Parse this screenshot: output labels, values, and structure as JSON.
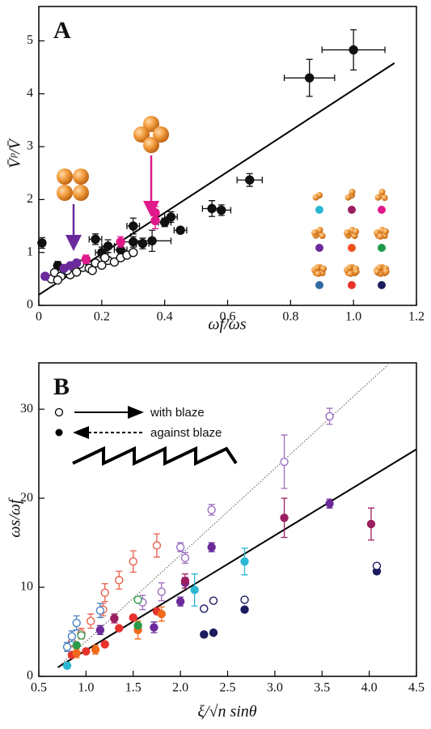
{
  "chart_data": [
    {
      "type": "scatter",
      "panel_label": "A",
      "xlabel": "ωf/ωs",
      "ylabel": "V̄ᵖ/V̄",
      "xlim": [
        0,
        1.2
      ],
      "ylim": [
        0,
        5.65
      ],
      "xticks": [
        0,
        0.2,
        0.4,
        0.6,
        0.8,
        {
          "value": 1,
          "label": "1.0"
        },
        1.2
      ],
      "yticks": [
        0,
        1,
        2,
        3,
        4,
        5
      ],
      "series": [
        {
          "color": "#111111",
          "marker": "filled",
          "x": [
            1.0,
            0.86,
            0.67,
            0.55,
            0.58,
            0.45,
            0.42,
            0.4,
            0.36,
            0.3,
            0.3,
            0.22,
            0.18,
            0.01,
            0.06,
            0.33,
            0.2,
            0.26
          ],
          "values": [
            4.83,
            4.3,
            2.37,
            1.83,
            1.8,
            1.42,
            1.67,
            1.57,
            1.22,
            1.5,
            1.2,
            1.12,
            1.25,
            1.18,
            0.75,
            1.17,
            1.0,
            1.05
          ],
          "xerr": [
            0.1,
            0.08,
            0.04,
            0.03,
            0.03,
            0.02,
            0.02,
            0.02,
            0.06,
            0.02,
            0.03,
            0.02,
            0.02,
            0.01,
            0.01,
            0.02,
            0.02,
            0.02
          ],
          "yerr": [
            0.38,
            0.35,
            0.12,
            0.15,
            0.1,
            0.06,
            0.1,
            0.08,
            0.2,
            0.15,
            0.1,
            0.12,
            0.1,
            0.1,
            0.08,
            0.1,
            0.1,
            0.1
          ]
        },
        {
          "color": "#111111",
          "marker": "open",
          "x": [
            0.04,
            0.05,
            0.07,
            0.08,
            0.1,
            0.12,
            0.14,
            0.16,
            0.18,
            0.2,
            0.22,
            0.24,
            0.26,
            0.28,
            0.3,
            0.06,
            0.09,
            0.13,
            0.17,
            0.21
          ],
          "values": [
            0.5,
            0.62,
            0.55,
            0.68,
            0.58,
            0.63,
            0.72,
            0.7,
            0.8,
            0.76,
            0.85,
            0.82,
            0.9,
            0.95,
            1.0,
            0.48,
            0.66,
            0.78,
            0.66,
            0.9
          ]
        },
        {
          "color": "#6b2a9c",
          "marker": "filled",
          "x": [
            0.02,
            0.08,
            0.1,
            0.12
          ],
          "values": [
            0.55,
            0.7,
            0.75,
            0.8
          ]
        },
        {
          "color": "#e0198a",
          "marker": "filled",
          "x": [
            0.37,
            0.37,
            0.26,
            0.15
          ],
          "values": [
            1.6,
            1.75,
            1.2,
            0.87
          ],
          "yerr": [
            0.15,
            0.12,
            0.1,
            0.08
          ]
        }
      ],
      "lines": [
        {
          "color": "#000000",
          "style": "solid",
          "x": [
            0,
            1.13
          ],
          "values": [
            0.2,
            4.58
          ]
        }
      ]
    },
    {
      "type": "scatter",
      "panel_label": "B",
      "xlabel": "ξ/√n sinθ",
      "ylabel": "ωs/ωf",
      "xlim": [
        0.5,
        4.5
      ],
      "ylim": [
        0,
        35.2
      ],
      "xticks": [
        0.5,
        {
          "value": 1,
          "label": "1.0"
        },
        1.5,
        {
          "value": 2,
          "label": "2.0"
        },
        2.5,
        {
          "value": 3,
          "label": "3.0"
        },
        3.5,
        {
          "value": 4,
          "label": "4.0"
        },
        4.5
      ],
      "yticks": [
        0,
        10,
        20,
        30
      ],
      "legend_labels": [
        "with blaze",
        "against blaze"
      ],
      "series": [
        {
          "color": "#9b6fc0",
          "marker": "open",
          "x": [
            3.58,
            3.1,
            2.33,
            2.0,
            2.05,
            1.8,
            1.6
          ],
          "values": [
            29.2,
            24.1,
            18.7,
            14.5,
            13.3,
            9.5,
            8.3
          ],
          "yerr": [
            0.9,
            3.0,
            0.6,
            0.5,
            0.6,
            1.0,
            0.8
          ]
        },
        {
          "color": "#6a2a9a",
          "marker": "filled",
          "x": [
            3.58,
            2.33,
            2.05,
            2.0,
            1.15,
            1.72
          ],
          "values": [
            19.4,
            14.5,
            10.5,
            8.4,
            5.2,
            5.5
          ],
          "yerr": [
            0.5,
            0.5,
            0.6,
            0.5,
            0.5,
            0.6
          ]
        },
        {
          "color": "#9b1f5e",
          "marker": "filled",
          "x": [
            3.1,
            4.02,
            2.05,
            1.3
          ],
          "values": [
            17.8,
            17.1,
            10.7,
            6.5
          ],
          "yerr": [
            2.2,
            1.8,
            0.8,
            0.5
          ]
        },
        {
          "color": "#1b1b5e",
          "marker": "filled",
          "x": [
            4.08,
            2.68,
            2.35,
            2.25
          ],
          "values": [
            11.8,
            7.5,
            4.9,
            4.7
          ]
        },
        {
          "color": "#1b1b5e",
          "marker": "open",
          "x": [
            4.08,
            2.68,
            2.35,
            2.25
          ],
          "values": [
            12.4,
            8.6,
            8.5,
            7.6
          ]
        },
        {
          "color": "#e8604c",
          "marker": "open",
          "x": [
            1.2,
            1.35,
            1.5,
            1.75,
            1.05,
            0.95,
            0.85,
            1.18
          ],
          "values": [
            9.4,
            10.8,
            12.9,
            14.7,
            6.2,
            4.8,
            3.8,
            7.5
          ],
          "yerr": [
            1.0,
            1.0,
            1.2,
            1.3,
            0.8,
            0.6,
            0.5,
            0.7
          ]
        },
        {
          "color": "#e8322c",
          "marker": "filled",
          "x": [
            0.85,
            1.0,
            1.2,
            1.35,
            1.75,
            1.5
          ],
          "values": [
            2.4,
            2.8,
            3.6,
            5.4,
            7.3,
            6.6
          ]
        },
        {
          "color": "#f06a1a",
          "marker": "filled",
          "x": [
            1.55,
            0.9,
            1.1,
            1.8
          ],
          "values": [
            5.2,
            2.6,
            3.0,
            7.0
          ],
          "yerr": [
            1.0,
            0.5,
            0.5,
            0.8
          ]
        },
        {
          "color": "#2ab7d2",
          "marker": "filled",
          "x": [
            2.68,
            2.15,
            0.8
          ],
          "values": [
            12.9,
            9.7,
            1.2
          ],
          "yerr": [
            1.5,
            1.8,
            0.3
          ]
        },
        {
          "color": "#4a7fc0",
          "marker": "open",
          "x": [
            0.9,
            0.85,
            1.15,
            0.8
          ],
          "values": [
            6.0,
            4.5,
            7.4,
            3.3
          ],
          "yerr": [
            0.8,
            0.6,
            0.8,
            0.5
          ]
        },
        {
          "color": "#2a9a4a",
          "marker": "open",
          "x": [
            1.55,
            0.95
          ],
          "values": [
            8.6,
            4.6
          ]
        },
        {
          "color": "#2a9a4a",
          "marker": "filled",
          "x": [
            1.55,
            0.9
          ],
          "values": [
            5.7,
            3.5
          ]
        }
      ],
      "lines": [
        {
          "color": "#000000",
          "style": "solid",
          "x": [
            0.7,
            4.5
          ],
          "values": [
            1.0,
            25.5
          ]
        },
        {
          "color": "#555555",
          "style": "dotted",
          "x": [
            0.7,
            4.2
          ],
          "values": [
            1.0,
            35.0
          ]
        }
      ]
    }
  ]
}
